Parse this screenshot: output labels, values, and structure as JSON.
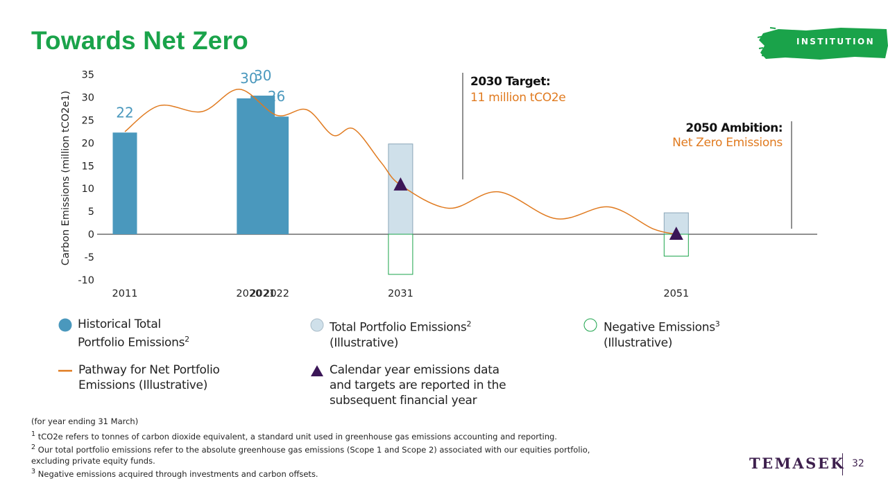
{
  "slide": {
    "title": "Towards Net Zero",
    "tag": "INSTITUTION",
    "logo": "TEMASEK",
    "page_number": "32",
    "accent_green": "#1aa34a",
    "brand_purple": "#3d1f4d"
  },
  "chart_data": {
    "type": "bar",
    "ylabel": "Carbon Emissions (million tCO2e1)",
    "ylim": [
      -10,
      35
    ],
    "yticks": [
      35,
      30,
      25,
      20,
      15,
      10,
      5,
      0,
      -5,
      -10
    ],
    "x_tick_labels": [
      {
        "label": "2011",
        "year": 2011
      },
      {
        "label": "2020",
        "year": 2020
      },
      {
        "label": "2021",
        "year": 2021
      },
      {
        "label": "2022",
        "year": 2022
      },
      {
        "label": "2031",
        "year": 2031
      },
      {
        "label": "2051",
        "year": 2051
      }
    ],
    "historical_bars": {
      "name": "Historical Total Portfolio Emissions",
      "color": "#4a98bd",
      "points": [
        {
          "year": 2011,
          "value": 22.3,
          "label": "22"
        },
        {
          "year": 2020,
          "value": 29.8,
          "label": "30"
        },
        {
          "year": 2021,
          "value": 30.4,
          "label": "30"
        },
        {
          "year": 2022,
          "value": 25.8,
          "label": "26"
        }
      ]
    },
    "illustrative_total_bars": {
      "name": "Total Portfolio Emissions (Illustrative)",
      "color": "#cfe0ea",
      "points": [
        {
          "year": 2031,
          "value": 19.8
        },
        {
          "year": 2051,
          "value": 4.7
        }
      ]
    },
    "negative_bars": {
      "name": "Negative Emissions (Illustrative)",
      "color": "#1aa34a",
      "points": [
        {
          "year": 2031,
          "value": -8.8
        },
        {
          "year": 2051,
          "value": -4.8
        }
      ]
    },
    "pathway": {
      "name": "Pathway for Net Portfolio Emissions (Illustrative)",
      "color": "#e07a1f",
      "points": [
        [
          2011,
          22.5
        ],
        [
          2013.5,
          28.2
        ],
        [
          2016.6,
          26.9
        ],
        [
          2019.3,
          31.8
        ],
        [
          2022,
          26.1
        ],
        [
          2024.2,
          27.3
        ],
        [
          2026.1,
          21.7
        ],
        [
          2027.6,
          23.1
        ],
        [
          2029.6,
          15.7
        ],
        [
          2031,
          10.8
        ],
        [
          2034.5,
          5.7
        ],
        [
          2038.1,
          9.3
        ],
        [
          2042.3,
          3.4
        ],
        [
          2046.1,
          6.0
        ],
        [
          2049.3,
          1.2
        ],
        [
          2051,
          0
        ]
      ]
    },
    "markers": {
      "name": "Calendar year emissions data and targets are reported in the subsequent financial year",
      "color": "#3b1657",
      "points": [
        {
          "year": 2031,
          "value": 10.8
        },
        {
          "year": 2051,
          "value": 0
        }
      ]
    },
    "annotations": [
      {
        "title": "2030 Target:",
        "text": "11 million tCO2e",
        "year": 2031
      },
      {
        "title": "2050 Ambition:",
        "text": "Net Zero Emissions",
        "year": 2051
      }
    ]
  },
  "legend": [
    {
      "label": "Historical Total\nPortfolio Emissions",
      "sup": "2",
      "symbol": "filled-circle",
      "color": "#4a98bd"
    },
    {
      "label": "Total Portfolio Emissions",
      "sup": "2",
      "suffix": "\n(Illustrative)",
      "symbol": "light-circle",
      "color": "#cfe0ea"
    },
    {
      "label": "Negative Emissions",
      "sup": "3",
      "suffix": "\n(Illustrative)",
      "symbol": "outline-circle",
      "color": "#1aa34a"
    },
    {
      "label": "Pathway for Net Portfolio\nEmissions (Illustrative)",
      "symbol": "dash",
      "color": "#e07a1f"
    },
    {
      "label": "Calendar year emissions data\nand targets are reported in the\nsubsequent financial year",
      "symbol": "triangle",
      "color": "#3b1657"
    }
  ],
  "footnotes": {
    "period": "(for year ending 31 March)",
    "notes": [
      {
        "num": "1",
        "text": " tCO2e refers to tonnes of carbon dioxide equivalent, a standard unit used in greenhouse gas emissions accounting and reporting."
      },
      {
        "num": "2",
        "text": " Our total portfolio emissions refer to the absolute greenhouse gas emissions (Scope 1 and Scope 2) associated with our equities portfolio, excluding private equity funds."
      },
      {
        "num": "3",
        "text": " Negative emissions acquired through investments and carbon offsets."
      }
    ]
  }
}
